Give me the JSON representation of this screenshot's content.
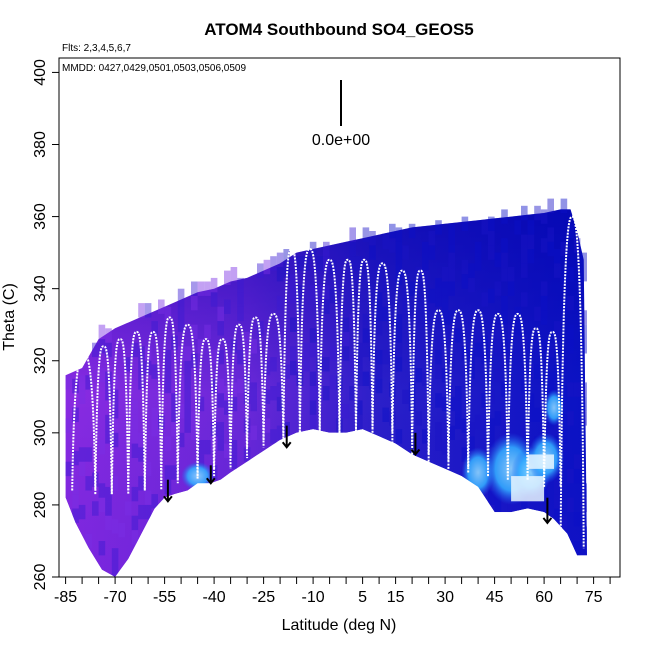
{
  "chart_data": {
    "type": "heatmap",
    "title": "ATOM4 Southbound SO4_GEOS5",
    "subtitle_flights": "Flts: 2,3,4,5,6,7",
    "subtitle_dates": "MMDD: 0427,0429,0501,0503,0506,0509",
    "xlabel": "Latitude (deg N)",
    "ylabel": "Theta (C)",
    "xlim": [
      -87,
      83
    ],
    "ylim": [
      260,
      404
    ],
    "x_ticks": [
      -85,
      -70,
      -55,
      -40,
      -25,
      -10,
      5,
      15,
      30,
      45,
      60,
      75
    ],
    "x_minor_ticks": [
      -80,
      -75,
      -65,
      -60,
      -50,
      -45,
      -35,
      -30,
      -20,
      -15,
      -5,
      0,
      10,
      20,
      25,
      35,
      40,
      50,
      55,
      65,
      70,
      80
    ],
    "y_ticks": [
      260,
      280,
      300,
      320,
      340,
      360,
      380,
      400
    ],
    "scale_bar_label": "0.0e+00",
    "colors": {
      "background": "#ffffff",
      "low": "#0000cd",
      "mid": "#7c2ee6",
      "high_cyan": "#33aaff",
      "peak": "#ffffff",
      "track": "#ffffff",
      "marker": "#000000"
    },
    "top_boundary": [
      [
        -85,
        316
      ],
      [
        -80,
        318
      ],
      [
        -75,
        326
      ],
      [
        -70,
        329
      ],
      [
        -65,
        331
      ],
      [
        -60,
        333
      ],
      [
        -55,
        335
      ],
      [
        -50,
        337
      ],
      [
        -45,
        339
      ],
      [
        -40,
        340
      ],
      [
        -35,
        342
      ],
      [
        -30,
        343
      ],
      [
        -25,
        345
      ],
      [
        -20,
        347
      ],
      [
        -15,
        350
      ],
      [
        -10,
        351
      ],
      [
        -5,
        352
      ],
      [
        0,
        353
      ],
      [
        5,
        354
      ],
      [
        10,
        355
      ],
      [
        15,
        356
      ],
      [
        20,
        357
      ],
      [
        25,
        357.5
      ],
      [
        30,
        358
      ],
      [
        35,
        358.5
      ],
      [
        40,
        359
      ],
      [
        45,
        359.5
      ],
      [
        50,
        360
      ],
      [
        55,
        360.5
      ],
      [
        60,
        361
      ],
      [
        65,
        362
      ],
      [
        68,
        362
      ],
      [
        70,
        356
      ],
      [
        72,
        348
      ]
    ],
    "bottom_boundary": [
      [
        -85,
        282
      ],
      [
        -82,
        275
      ],
      [
        -78,
        268
      ],
      [
        -74,
        262
      ],
      [
        -70,
        260
      ],
      [
        -66,
        265
      ],
      [
        -62,
        272
      ],
      [
        -58,
        279
      ],
      [
        -55,
        282
      ],
      [
        -52,
        283
      ],
      [
        -48,
        284
      ],
      [
        -45,
        286
      ],
      [
        -41,
        286
      ],
      [
        -38,
        287
      ],
      [
        -35,
        289
      ],
      [
        -30,
        292
      ],
      [
        -25,
        295
      ],
      [
        -20,
        298
      ],
      [
        -15,
        300
      ],
      [
        -10,
        301
      ],
      [
        -5,
        300
      ],
      [
        0,
        300
      ],
      [
        5,
        301
      ],
      [
        10,
        299
      ],
      [
        15,
        297
      ],
      [
        20,
        294
      ],
      [
        25,
        292
      ],
      [
        30,
        290
      ],
      [
        35,
        288
      ],
      [
        40,
        285
      ],
      [
        45,
        278
      ],
      [
        50,
        278
      ],
      [
        55,
        279
      ],
      [
        60,
        278
      ],
      [
        63,
        276
      ],
      [
        67,
        272
      ],
      [
        70,
        266
      ],
      [
        73,
        266
      ]
    ],
    "flight_profiles": [
      {
        "x0": -83,
        "x1": -76,
        "top": 322,
        "bottom": 284
      },
      {
        "x0": -76,
        "x1": -71,
        "top": 324,
        "bottom": 283
      },
      {
        "x0": -71,
        "x1": -66,
        "top": 326,
        "bottom": 283
      },
      {
        "x0": -66,
        "x1": -61,
        "top": 328,
        "bottom": 284
      },
      {
        "x0": -61,
        "x1": -56,
        "top": 328,
        "bottom": 284
      },
      {
        "x0": -56,
        "x1": -51,
        "top": 332,
        "bottom": 286
      },
      {
        "x0": -51,
        "x1": -45,
        "top": 330,
        "bottom": 287
      },
      {
        "x0": -45,
        "x1": -40,
        "top": 326,
        "bottom": 288
      },
      {
        "x0": -40,
        "x1": -35,
        "top": 326,
        "bottom": 290
      },
      {
        "x0": -35,
        "x1": -30,
        "top": 330,
        "bottom": 293
      },
      {
        "x0": -30,
        "x1": -25,
        "top": 332,
        "bottom": 296
      },
      {
        "x0": -25,
        "x1": -19,
        "top": 333,
        "bottom": 298
      },
      {
        "x0": -19,
        "x1": -14,
        "top": 351,
        "bottom": 299
      },
      {
        "x0": -14,
        "x1": -8,
        "top": 351,
        "bottom": 300
      },
      {
        "x0": -8,
        "x1": -2,
        "top": 348,
        "bottom": 299
      },
      {
        "x0": -2,
        "x1": 3,
        "top": 348,
        "bottom": 300
      },
      {
        "x0": 3,
        "x1": 8,
        "top": 348,
        "bottom": 301
      },
      {
        "x0": 8,
        "x1": 14,
        "top": 347,
        "bottom": 300
      },
      {
        "x0": 14,
        "x1": 20,
        "top": 345,
        "bottom": 297
      },
      {
        "x0": 20,
        "x1": 25,
        "top": 345,
        "bottom": 294
      },
      {
        "x0": 25,
        "x1": 31,
        "top": 334,
        "bottom": 292
      },
      {
        "x0": 31,
        "x1": 37,
        "top": 334,
        "bottom": 290
      },
      {
        "x0": 37,
        "x1": 43,
        "top": 334,
        "bottom": 289
      },
      {
        "x0": 43,
        "x1": 49,
        "top": 333,
        "bottom": 288
      },
      {
        "x0": 49,
        "x1": 55,
        "top": 333,
        "bottom": 287
      },
      {
        "x0": 55,
        "x1": 60,
        "top": 329,
        "bottom": 287
      },
      {
        "x0": 60,
        "x1": 65,
        "top": 328,
        "bottom": 285
      },
      {
        "x0": 65,
        "x1": 72,
        "top": 360,
        "bottom": 268
      }
    ],
    "takeoff_markers": [
      {
        "x": -54,
        "y_top": 287,
        "y_bottom": 281
      },
      {
        "x": -41,
        "y_top": 291,
        "y_bottom": 286
      },
      {
        "x": -18,
        "y_top": 302,
        "y_bottom": 296
      },
      {
        "x": 21,
        "y_top": 300,
        "y_bottom": 294
      },
      {
        "x": 61,
        "y_top": 282,
        "y_bottom": 275
      }
    ],
    "cyan_patches": [
      {
        "x0": 35,
        "x1": 45,
        "y0": 282,
        "y1": 296
      },
      {
        "x0": 42,
        "x1": 58,
        "y0": 280,
        "y1": 300
      },
      {
        "x0": 50,
        "x1": 62,
        "y0": 282,
        "y1": 296
      },
      {
        "x0": 55,
        "x1": 66,
        "y0": 286,
        "y1": 300
      },
      {
        "x0": 60,
        "x1": 66,
        "y0": 302,
        "y1": 312
      },
      {
        "x0": -50,
        "x1": -40,
        "y0": 284,
        "y1": 292
      }
    ],
    "white_patches": [
      {
        "x0": 50,
        "x1": 60,
        "y0": 281,
        "y1": 288
      },
      {
        "x0": 55,
        "x1": 63,
        "y0": 290,
        "y1": 294
      }
    ]
  }
}
